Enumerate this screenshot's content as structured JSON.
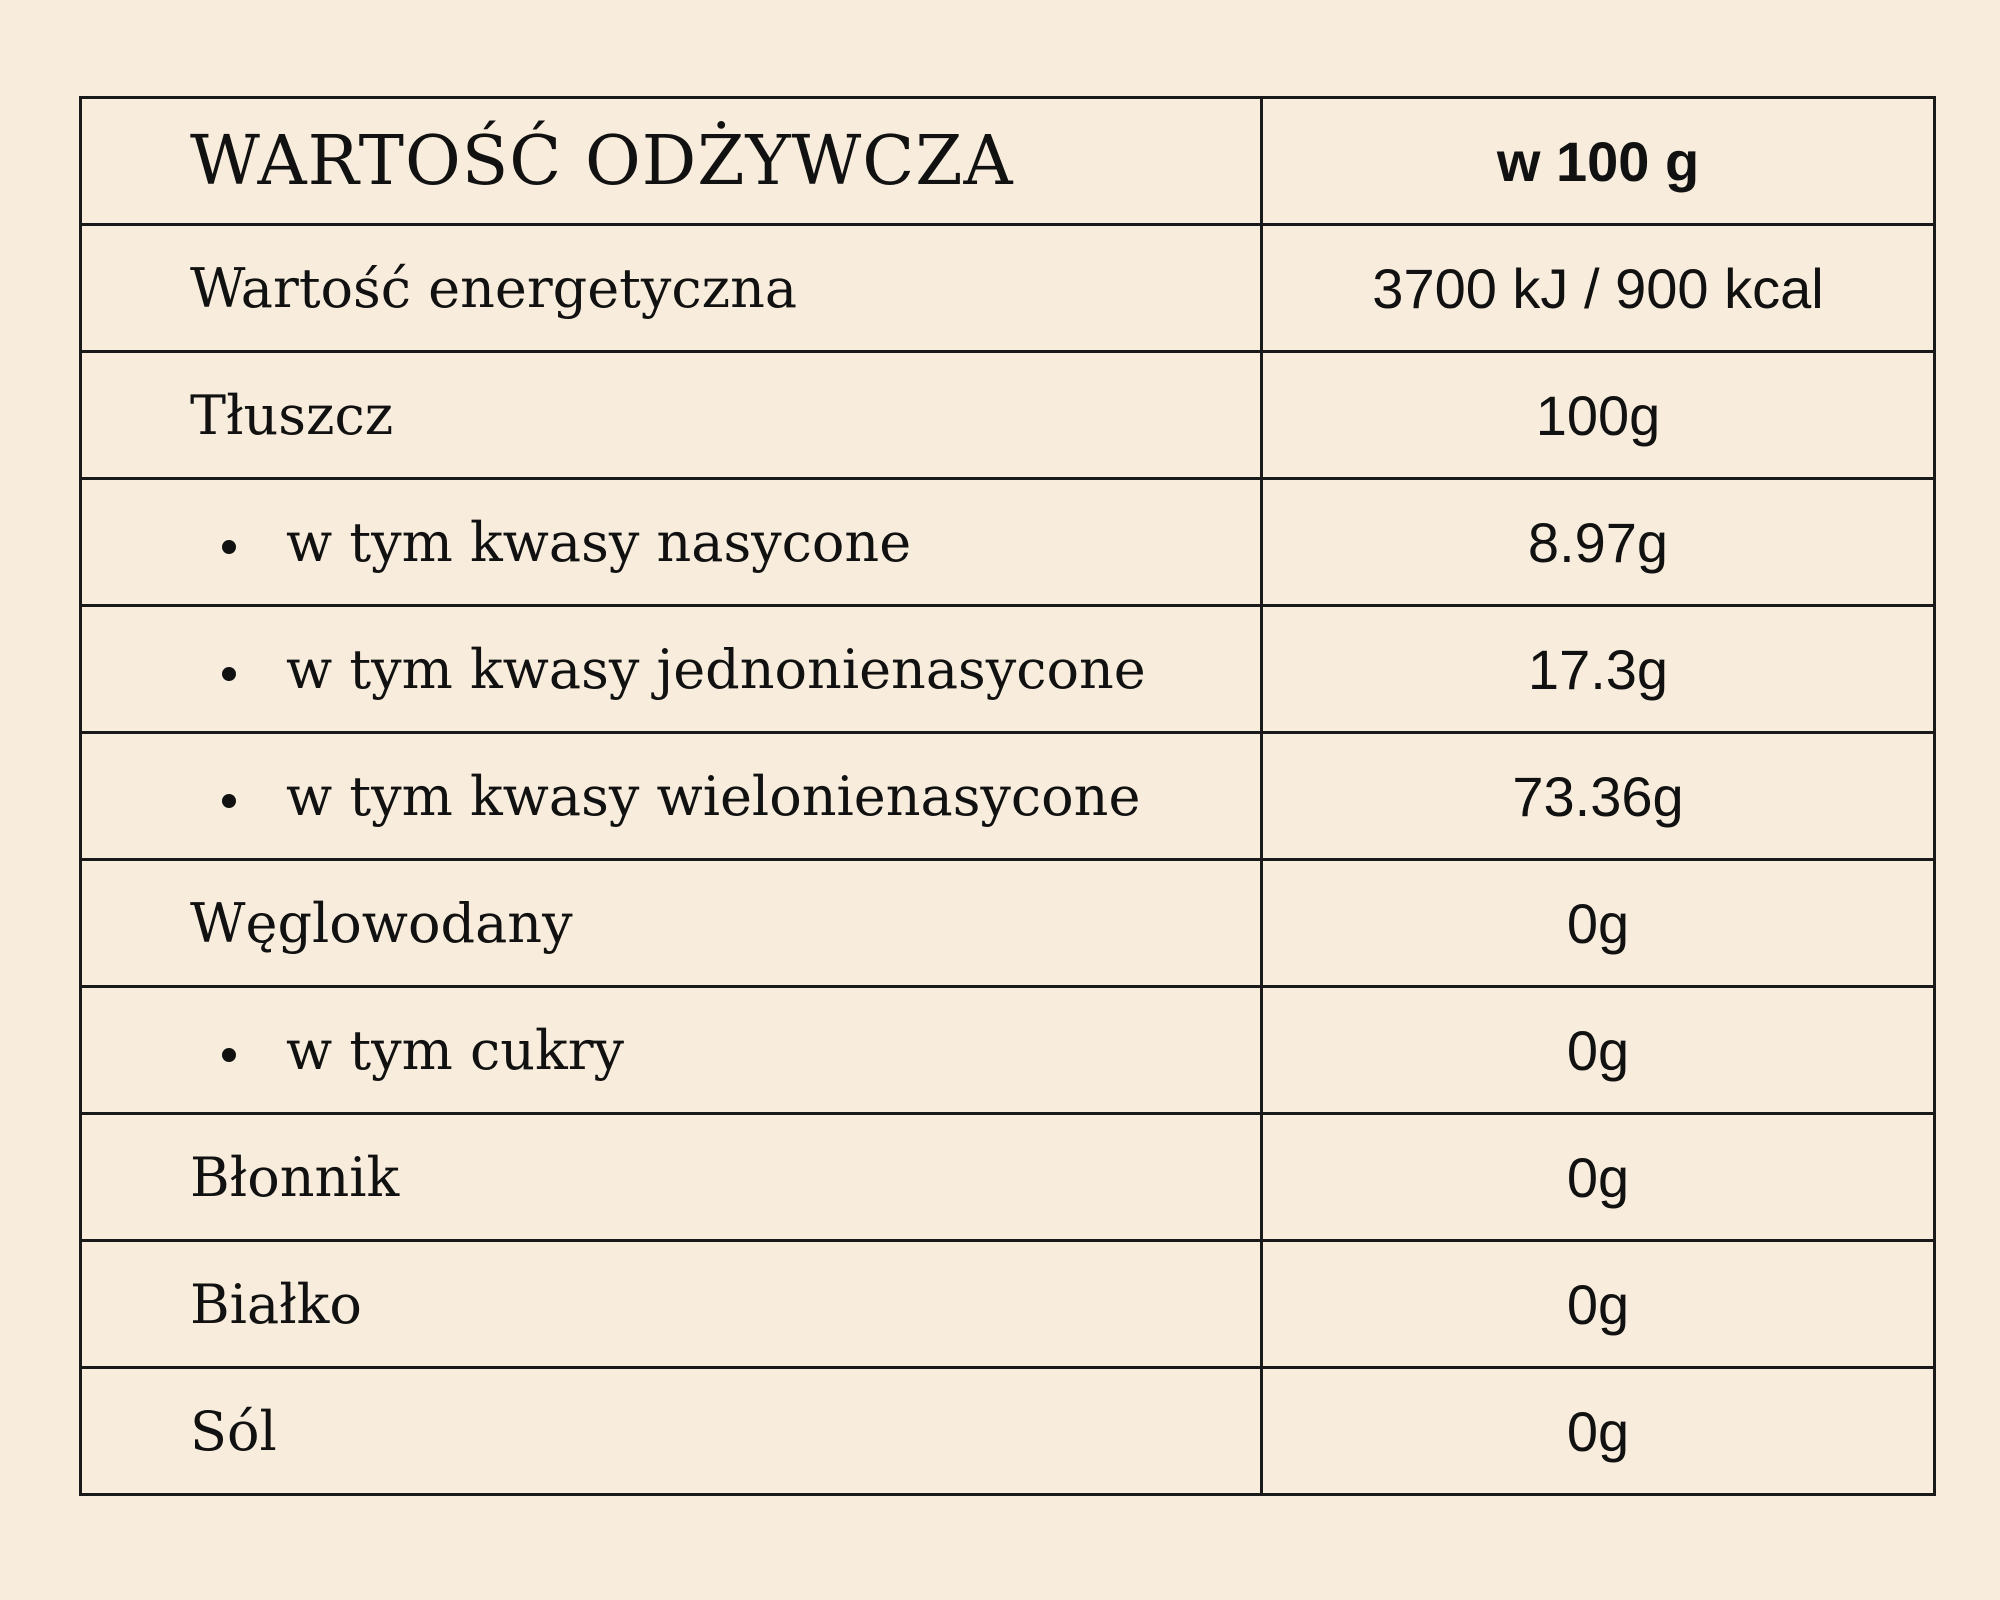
{
  "header": {
    "title": "WARTOŚĆ ODŻYWCZA",
    "per": "w 100 g"
  },
  "rows": [
    {
      "label": "Wartość energetyczna",
      "value": "3700 kJ / 900 kcal",
      "sub": false
    },
    {
      "label": "Tłuszcz",
      "value": "100g",
      "sub": false
    },
    {
      "label": "w tym kwasy nasycone",
      "value": "8.97g",
      "sub": true
    },
    {
      "label": "w tym kwasy jednonienasycone",
      "value": "17.3g",
      "sub": true
    },
    {
      "label": "w tym kwasy wielonienasycone",
      "value": "73.36g",
      "sub": true
    },
    {
      "label": "Węglowodany",
      "value": "0g",
      "sub": false
    },
    {
      "label": "w tym cukry",
      "value": "0g",
      "sub": true
    },
    {
      "label": "Błonnik",
      "value": "0g",
      "sub": false
    },
    {
      "label": "Białko",
      "value": "0g",
      "sub": false
    },
    {
      "label": "Sól",
      "value": "0g",
      "sub": false
    }
  ],
  "colors": {
    "background": "#f8eddc",
    "border": "#1a1a1a",
    "text": "#111111"
  }
}
